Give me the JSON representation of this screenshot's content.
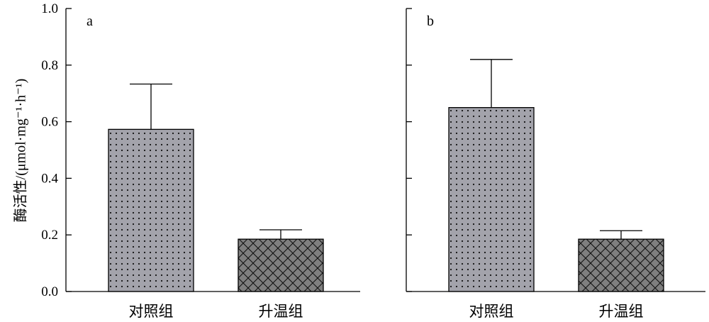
{
  "chart_data": [
    {
      "type": "bar",
      "panel_label": "a",
      "categories": [
        "对照组",
        "升温组"
      ],
      "values": [
        0.573,
        0.185
      ],
      "error_upper": [
        0.733,
        0.218
      ],
      "ylabel": "酶活性/(μmol·mg⁻¹·h⁻¹)",
      "ylim": [
        0,
        1.0
      ],
      "yticks": [
        "0.0",
        "0.2",
        "0.4",
        "0.6",
        "0.8",
        "1.0"
      ],
      "bar_patterns": [
        "dots",
        "crosshatch"
      ],
      "bar_colors": [
        "#a3a3ab",
        "#7f7f7f"
      ],
      "grid": false
    },
    {
      "type": "bar",
      "panel_label": "b",
      "categories": [
        "对照组",
        "升温组"
      ],
      "values": [
        0.65,
        0.185
      ],
      "error_upper": [
        0.82,
        0.215
      ],
      "ylim": [
        0,
        1.0
      ],
      "yticks": [],
      "bar_patterns": [
        "dots",
        "crosshatch"
      ],
      "bar_colors": [
        "#a3a3ab",
        "#7f7f7f"
      ],
      "grid": false
    }
  ]
}
